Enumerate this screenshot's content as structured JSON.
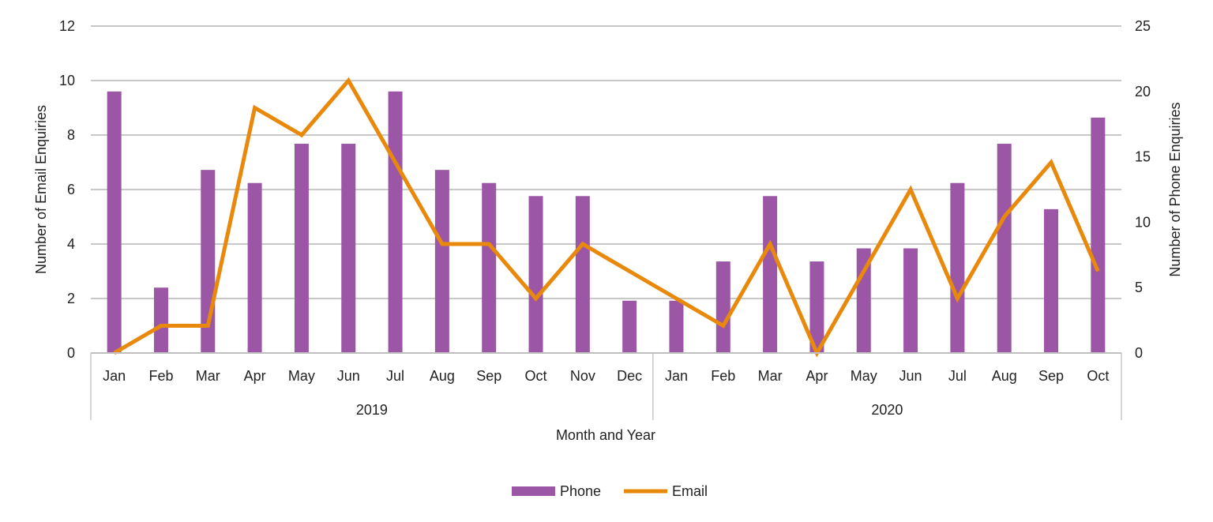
{
  "chart_data": {
    "type": "bar+line",
    "xlabel": "Month and Year",
    "ylabel_left": "Number of Email Enquiries",
    "ylabel_right": "Number of Phone Enquiries",
    "ylim_left": [
      0,
      12
    ],
    "yticks_left": [
      0,
      2,
      4,
      6,
      8,
      10,
      12
    ],
    "ylim_right": [
      0,
      25
    ],
    "yticks_right": [
      0,
      5,
      10,
      15,
      20,
      25
    ],
    "grid": true,
    "legend_position": "bottom",
    "groups": [
      {
        "label": "2019",
        "months": [
          "Jan",
          "Feb",
          "Mar",
          "Apr",
          "May",
          "Jun",
          "Jul",
          "Aug",
          "Sep",
          "Oct",
          "Nov",
          "Dec"
        ]
      },
      {
        "label": "2020",
        "months": [
          "Jan",
          "Feb",
          "Mar",
          "Apr",
          "May",
          "Jun",
          "Jul",
          "Aug",
          "Sep",
          "Oct"
        ]
      }
    ],
    "series": [
      {
        "name": "Phone",
        "type": "bar",
        "axis": "right",
        "color": "#9B57A5",
        "values": [
          20,
          5,
          14,
          13,
          16,
          16,
          20,
          14,
          13,
          12,
          12,
          4,
          4,
          7,
          12,
          7,
          8,
          8,
          13,
          16,
          11,
          18
        ]
      },
      {
        "name": "Email",
        "type": "line",
        "axis": "left",
        "color": "#E8890C",
        "values": [
          0,
          1,
          1,
          9,
          8,
          10,
          7,
          4,
          4,
          2,
          4,
          3,
          2,
          1,
          4,
          0,
          3,
          6,
          2,
          5,
          7,
          3
        ]
      }
    ]
  }
}
